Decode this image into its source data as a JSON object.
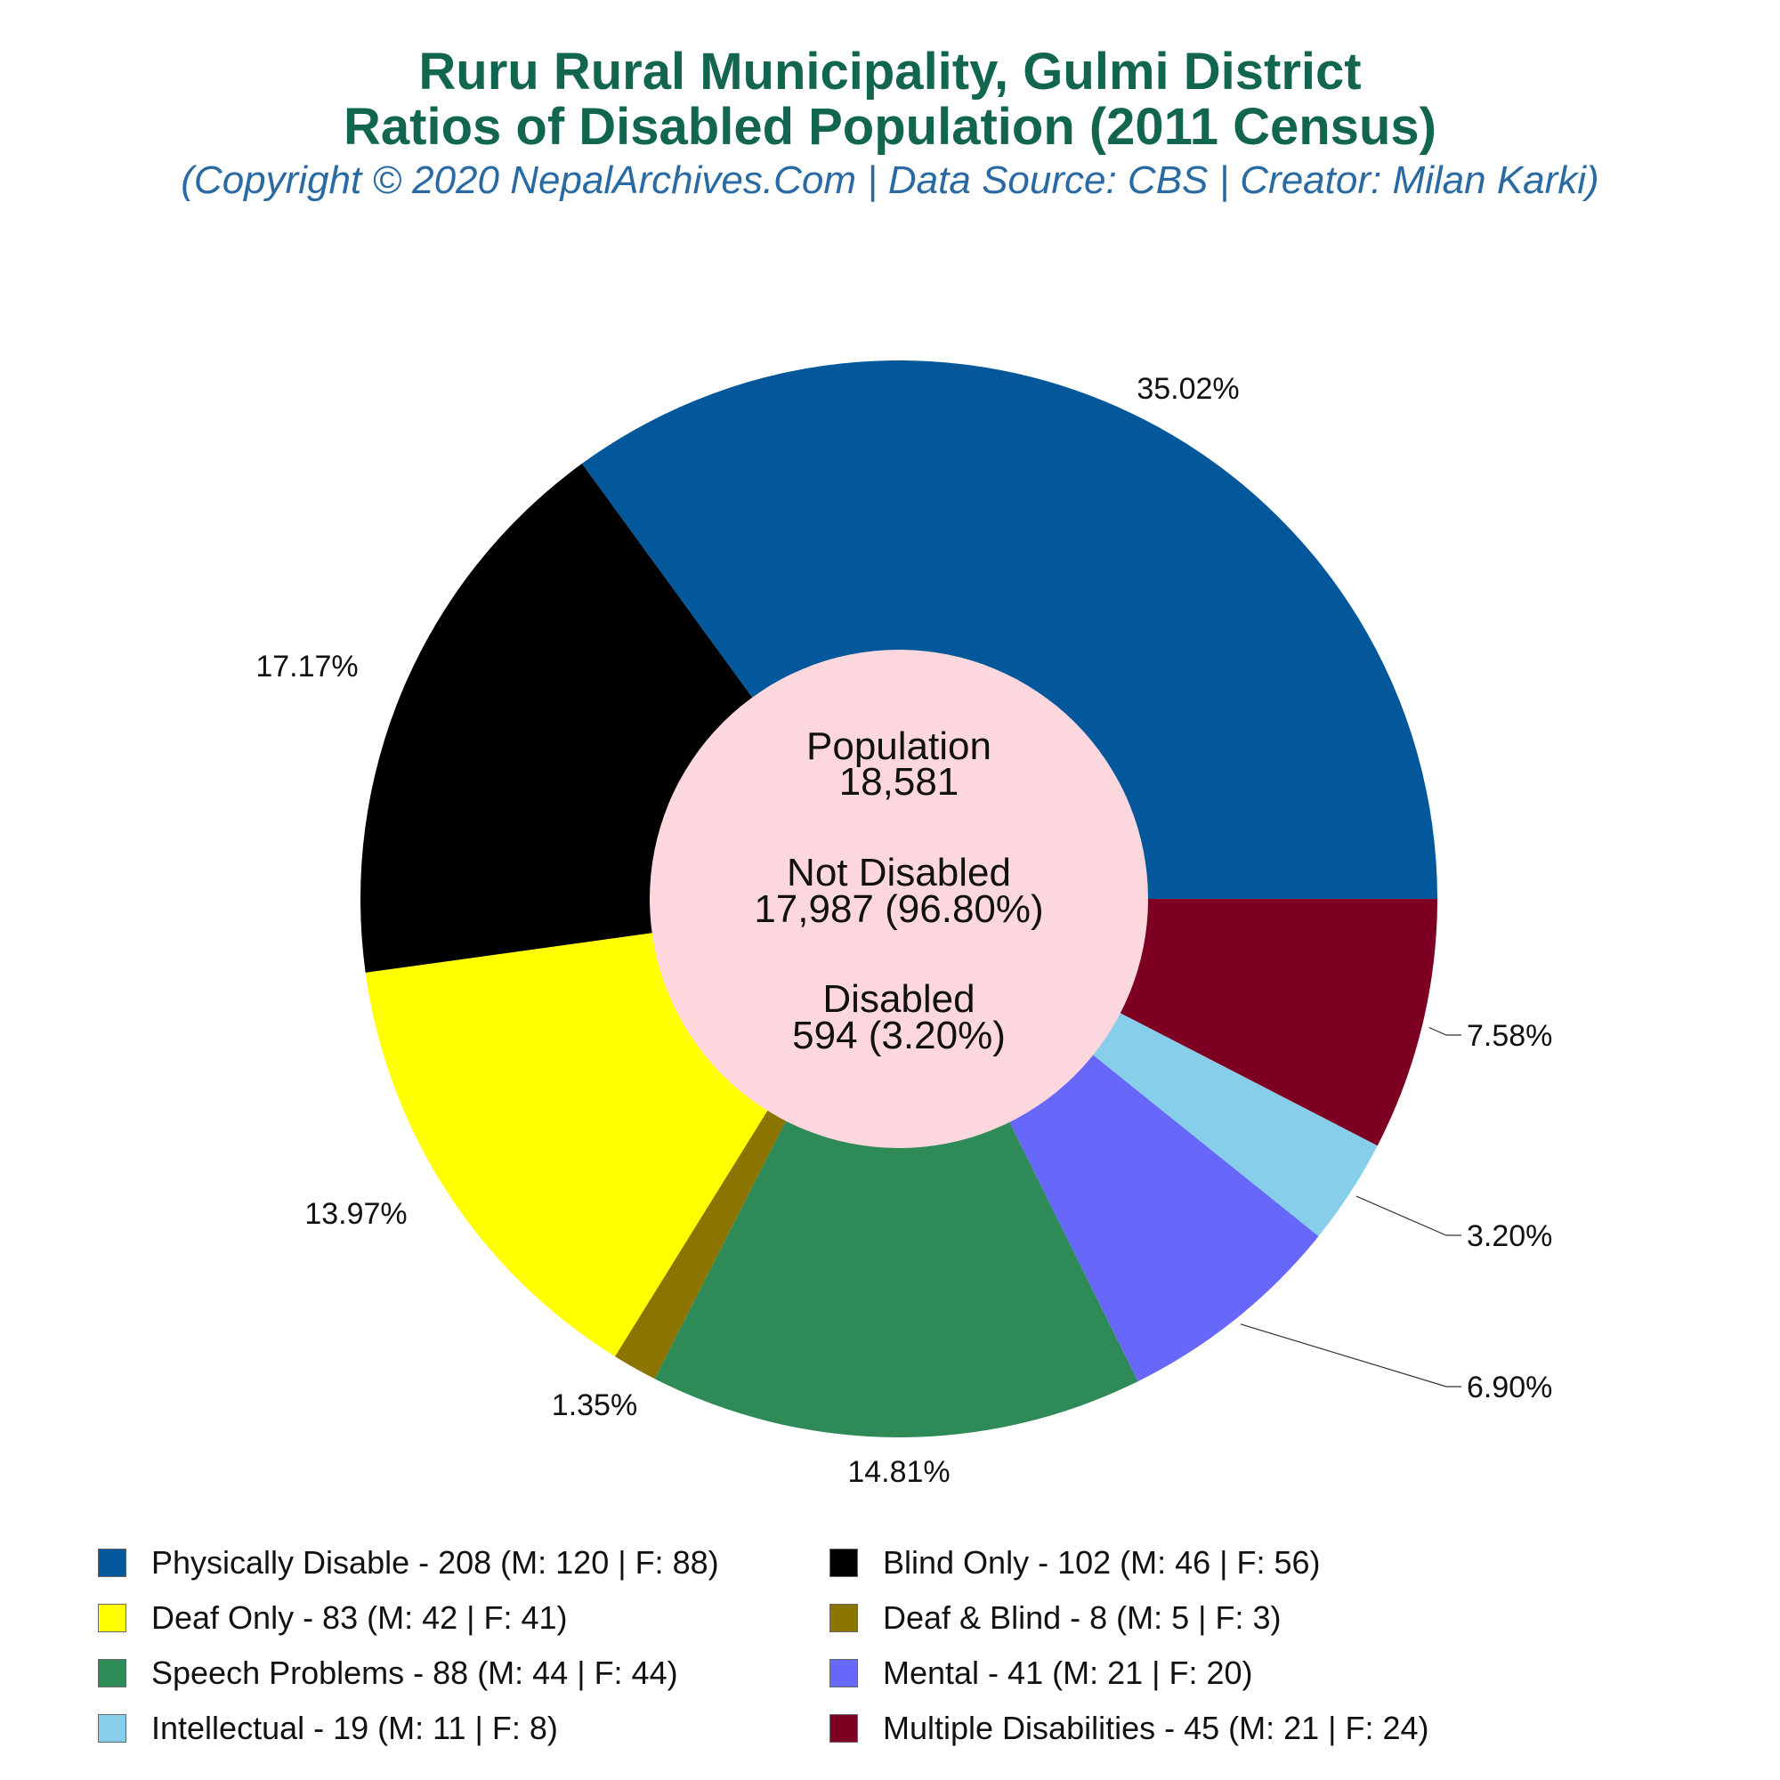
{
  "header": {
    "title_line1": "Ruru Rural Municipality, Gulmi District",
    "title_line2": "Ratios of Disabled Population (2011 Census)",
    "subtitle": "(Copyright © 2020 NepalArchives.Com | Data Source: CBS | Creator: Milan Karki)"
  },
  "center": {
    "population_label": "Population",
    "population_value": "18,581",
    "not_disabled_label": "Not Disabled",
    "not_disabled_value": "17,987 (96.80%)",
    "disabled_label": "Disabled",
    "disabled_value": "594 (3.20%)",
    "color": "#fdd7de"
  },
  "chart_data": {
    "type": "pie",
    "style": "donut",
    "start": "3 o'clock, counter-clockwise",
    "slices": [
      {
        "label": "Physically Disable",
        "value": 208,
        "percent": "35.02%",
        "male": 120,
        "female": 88,
        "color": "#02589a",
        "legend_text": "Physically Disable - 208 (M: 120 | F: 88)"
      },
      {
        "label": "Blind Only",
        "value": 102,
        "percent": "17.17%",
        "male": 46,
        "female": 56,
        "color": "#000000",
        "legend_text": "Blind Only - 102 (M: 46 | F: 56)"
      },
      {
        "label": "Deaf Only",
        "value": 83,
        "percent": "13.97%",
        "male": 42,
        "female": 41,
        "color": "#ffff00",
        "legend_text": "Deaf Only - 83 (M: 42 | F: 41)"
      },
      {
        "label": "Deaf & Blind",
        "value": 8,
        "percent": "1.35%",
        "male": 5,
        "female": 3,
        "color": "#8b7500",
        "legend_text": "Deaf & Blind - 8 (M: 5 | F: 3)"
      },
      {
        "label": "Speech Problems",
        "value": 88,
        "percent": "14.81%",
        "male": 44,
        "female": 44,
        "color": "#2e8b57",
        "legend_text": "Speech Problems - 88 (M: 44 | F: 44)"
      },
      {
        "label": "Mental",
        "value": 41,
        "percent": "6.90%",
        "male": 21,
        "female": 20,
        "color": "#6767fa",
        "legend_text": "Mental - 41 (M: 21 | F: 20)"
      },
      {
        "label": "Intellectual",
        "value": 19,
        "percent": "3.20%",
        "male": 11,
        "female": 8,
        "color": "#87ceeb",
        "legend_text": "Intellectual - 19 (M: 11 | F: 8)"
      },
      {
        "label": "Multiple Disabilities",
        "value": 45,
        "percent": "7.58%",
        "male": 21,
        "female": 24,
        "color": "#7d0022",
        "legend_text": "Multiple Disabilities - 45 (M: 21 | F: 24)"
      }
    ]
  }
}
